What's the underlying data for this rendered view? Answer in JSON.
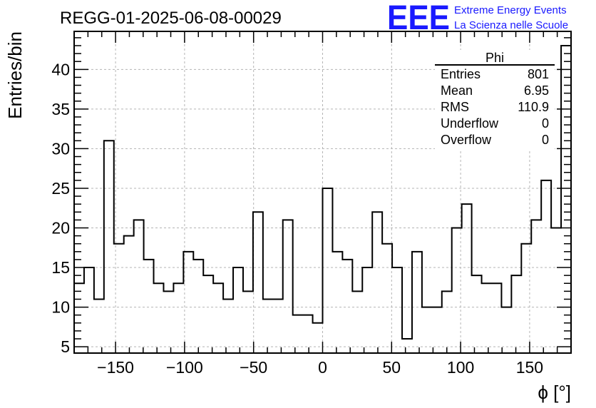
{
  "header": {
    "title": "REGG-01-2025-06-08-00029",
    "logo_text": "EEE",
    "logo_line1": "Extreme Energy Events",
    "logo_line2": "La Scienza nelle Scuole",
    "logo_color": "#1a1aff"
  },
  "stats": {
    "name": "Phi",
    "rows": [
      {
        "label": "Entries",
        "value": "801"
      },
      {
        "label": "Mean",
        "value": "6.95"
      },
      {
        "label": "RMS",
        "value": "110.9"
      },
      {
        "label": "Underflow",
        "value": "0"
      },
      {
        "label": "Overflow",
        "value": "0"
      }
    ]
  },
  "chart_data": {
    "type": "histogram",
    "title": "REGG-01-2025-06-08-00029",
    "xlabel": "ϕ [°]",
    "ylabel": "Entries/bin",
    "xlim": [
      -180,
      180
    ],
    "ylim": [
      4.2,
      44.8
    ],
    "bin_width": 7.2,
    "x_ticks": [
      -150,
      -100,
      -50,
      0,
      50,
      100,
      150
    ],
    "x_tick_labels": [
      "−150",
      "−100",
      "−50",
      "0",
      "50",
      "100",
      "150"
    ],
    "y_ticks": [
      5,
      10,
      15,
      20,
      25,
      30,
      35,
      40
    ],
    "y_tick_labels": [
      "5",
      "10",
      "15",
      "20",
      "25",
      "30",
      "35",
      "40"
    ],
    "grid": true,
    "values": [
      13,
      15,
      11,
      31,
      18,
      19,
      21,
      16,
      13,
      12,
      13,
      17,
      16,
      14,
      13,
      11,
      15,
      12,
      22,
      11,
      11,
      21,
      9,
      9,
      8,
      25,
      17,
      16,
      12,
      15,
      22,
      18,
      15,
      6,
      17,
      10,
      10,
      12,
      20,
      23,
      14,
      13,
      13,
      10,
      14,
      18,
      21,
      26,
      20,
      43
    ],
    "line_color": "#000000"
  }
}
